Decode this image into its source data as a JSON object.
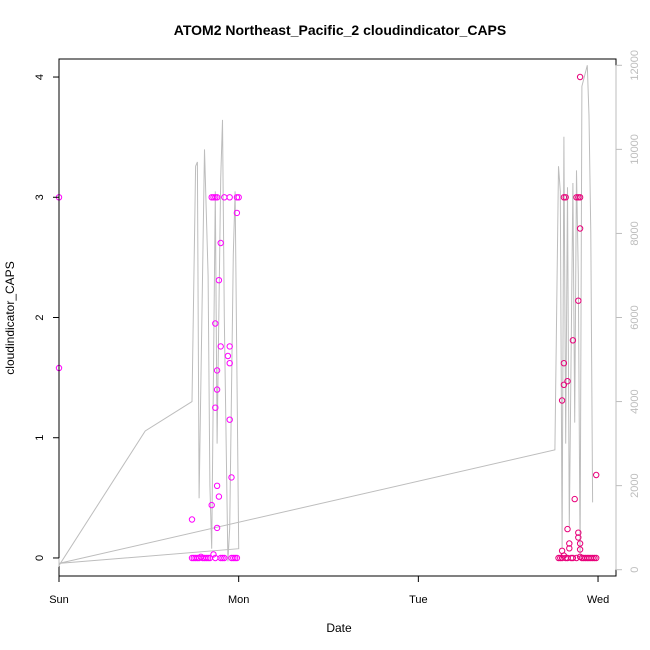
{
  "chart_data": {
    "type": "scatter",
    "title": "ATOM2 Northeast_Pacific_2 cloudindicator_CAPS",
    "xlabel": "Date",
    "ylabel": "cloudindicator_CAPS",
    "x_categories": [
      "Sun",
      "Mon",
      "Tue",
      "Wed"
    ],
    "xlim": [
      0,
      3.1
    ],
    "ylim": [
      -0.15,
      4.15
    ],
    "y_ticks": [
      "0",
      "1",
      "2",
      "3",
      "4"
    ],
    "y2_ticks": [
      "0",
      "2000",
      "4000",
      "6000",
      "8000",
      "10000",
      "12000"
    ],
    "y2lim": [
      -150,
      12150
    ],
    "colors": {
      "points_a": "#ff00ff",
      "points_b": "#e8007a",
      "line": "#bdbdbd",
      "axes": "#000000"
    },
    "series": [
      {
        "kind": "points",
        "values": [
          [
            0.0,
            3.0
          ],
          [
            0.0,
            1.58
          ],
          [
            0.74,
            0.32
          ],
          [
            0.74,
            0.0
          ],
          [
            0.75,
            0.0
          ],
          [
            0.76,
            0.0
          ],
          [
            0.77,
            0.0
          ],
          [
            0.78,
            0.0
          ],
          [
            0.79,
            0.01
          ],
          [
            0.8,
            0.0
          ],
          [
            0.81,
            0.0
          ],
          [
            0.82,
            0.0
          ],
          [
            0.83,
            0.0
          ],
          [
            0.84,
            0.0
          ],
          [
            0.85,
            0.44
          ],
          [
            0.86,
            0.03
          ],
          [
            0.87,
            0.0
          ],
          [
            0.85,
            3.0
          ],
          [
            0.86,
            3.0
          ],
          [
            0.87,
            3.0
          ],
          [
            0.88,
            3.0
          ],
          [
            0.87,
            1.95
          ],
          [
            0.88,
            1.56
          ],
          [
            0.88,
            1.4
          ],
          [
            0.87,
            1.25
          ],
          [
            0.88,
            0.6
          ],
          [
            0.88,
            0.25
          ],
          [
            0.89,
            0.51
          ],
          [
            0.89,
            2.31
          ],
          [
            0.9,
            2.62
          ],
          [
            0.9,
            1.76
          ],
          [
            0.9,
            0.0
          ],
          [
            0.91,
            0.0
          ],
          [
            0.92,
            0.0
          ],
          [
            0.92,
            3.0
          ],
          [
            0.94,
            1.68
          ],
          [
            0.95,
            1.62
          ],
          [
            0.95,
            1.76
          ],
          [
            0.95,
            1.15
          ],
          [
            0.96,
            0.67
          ],
          [
            0.95,
            3.0
          ],
          [
            0.96,
            0.0
          ],
          [
            0.97,
            0.0
          ],
          [
            0.98,
            0.0
          ],
          [
            0.99,
            0.0
          ],
          [
            0.99,
            2.87
          ],
          [
            0.99,
            3.0
          ],
          [
            1.0,
            3.0
          ],
          [
            2.78,
            0.0
          ],
          [
            2.79,
            0.0
          ],
          [
            2.8,
            0.0
          ],
          [
            2.8,
            1.31
          ],
          [
            2.81,
            1.44
          ],
          [
            2.81,
            1.62
          ],
          [
            2.8,
            0.06
          ],
          [
            2.81,
            0.02
          ],
          [
            2.81,
            3.0
          ],
          [
            2.82,
            3.0
          ],
          [
            2.82,
            0.0
          ],
          [
            2.83,
            0.0
          ],
          [
            2.83,
            1.47
          ],
          [
            2.83,
            0.24
          ],
          [
            2.84,
            0.08
          ],
          [
            2.84,
            0.12
          ],
          [
            2.85,
            0.0
          ],
          [
            2.86,
            0.0
          ],
          [
            2.86,
            1.81
          ],
          [
            2.87,
            0.49
          ],
          [
            2.88,
            0.0
          ],
          [
            2.88,
            3.0
          ],
          [
            2.89,
            3.0
          ],
          [
            2.89,
            2.14
          ],
          [
            2.9,
            2.74
          ],
          [
            2.9,
            3.0
          ],
          [
            2.89,
            0.21
          ],
          [
            2.89,
            0.17
          ],
          [
            2.9,
            0.12
          ],
          [
            2.9,
            0.07
          ],
          [
            2.9,
            0.01
          ],
          [
            2.91,
            0.0
          ],
          [
            2.9,
            4.0
          ],
          [
            2.92,
            0.0
          ],
          [
            2.93,
            0.0
          ],
          [
            2.94,
            0.0
          ],
          [
            2.95,
            0.0
          ],
          [
            2.96,
            0.0
          ],
          [
            2.97,
            0.0
          ],
          [
            2.98,
            0.0
          ],
          [
            2.99,
            0.0
          ],
          [
            2.99,
            0.69
          ]
        ]
      },
      {
        "kind": "line",
        "values": [
          [
            0.0,
            300
          ],
          [
            0.0,
            100
          ],
          [
            0.48,
            3300
          ],
          [
            0.74,
            4000
          ],
          [
            0.76,
            9600
          ],
          [
            0.77,
            9700
          ],
          [
            0.78,
            1700
          ],
          [
            0.81,
            10000
          ],
          [
            0.83,
            7000
          ],
          [
            0.84,
            2000
          ],
          [
            0.85,
            500
          ],
          [
            0.87,
            9000
          ],
          [
            0.88,
            3000
          ],
          [
            0.9,
            9300
          ],
          [
            0.91,
            10700
          ],
          [
            0.92,
            6000
          ],
          [
            0.94,
            200
          ],
          [
            0.95,
            1000
          ],
          [
            0.97,
            7500
          ],
          [
            0.98,
            9000
          ],
          [
            1.0,
            500
          ],
          [
            0.0,
            150
          ],
          [
            2.76,
            2850
          ],
          [
            2.78,
            9600
          ],
          [
            2.79,
            9000
          ],
          [
            2.8,
            500
          ],
          [
            2.81,
            10300
          ],
          [
            2.82,
            3000
          ],
          [
            2.83,
            9100
          ],
          [
            2.84,
            1000
          ],
          [
            2.86,
            9200
          ],
          [
            2.87,
            3500
          ],
          [
            2.88,
            9500
          ],
          [
            2.89,
            7000
          ],
          [
            2.9,
            300
          ],
          [
            2.91,
            11500
          ],
          [
            2.94,
            12000
          ],
          [
            2.95,
            10800
          ],
          [
            2.96,
            8000
          ],
          [
            2.97,
            1600
          ]
        ]
      }
    ],
    "grid": false
  }
}
